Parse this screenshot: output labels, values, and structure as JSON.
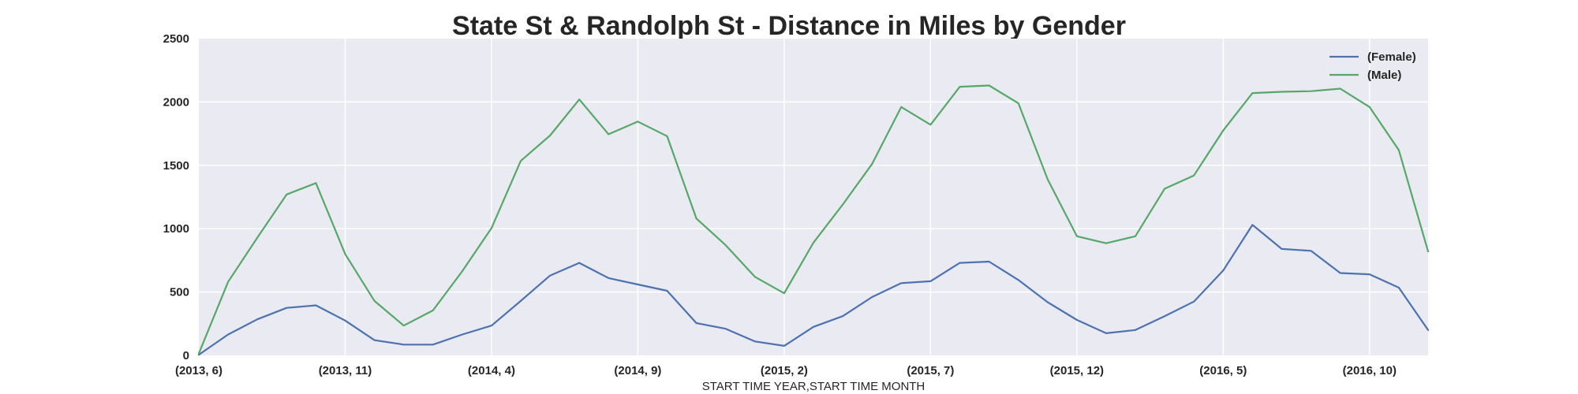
{
  "chart_data": {
    "type": "line",
    "title": "State St & Randolph St - Distance in Miles by Gender",
    "xlabel": "START TIME YEAR,START TIME MONTH",
    "ylabel": "",
    "ylim": [
      0,
      2500
    ],
    "yticks": [
      0,
      500,
      1000,
      1500,
      2000,
      2500
    ],
    "grid": true,
    "legend_position": "top-right",
    "x": [
      "(2013, 6)",
      "(2013, 7)",
      "(2013, 8)",
      "(2013, 9)",
      "(2013, 10)",
      "(2013, 11)",
      "(2013, 12)",
      "(2014, 1)",
      "(2014, 2)",
      "(2014, 3)",
      "(2014, 4)",
      "(2014, 5)",
      "(2014, 6)",
      "(2014, 7)",
      "(2014, 8)",
      "(2014, 9)",
      "(2014, 10)",
      "(2014, 11)",
      "(2014, 12)",
      "(2015, 1)",
      "(2015, 2)",
      "(2015, 3)",
      "(2015, 4)",
      "(2015, 5)",
      "(2015, 6)",
      "(2015, 7)",
      "(2015, 8)",
      "(2015, 9)",
      "(2015, 10)",
      "(2015, 11)",
      "(2015, 12)",
      "(2016, 1)",
      "(2016, 2)",
      "(2016, 3)",
      "(2016, 4)",
      "(2016, 5)",
      "(2016, 6)",
      "(2016, 7)",
      "(2016, 8)",
      "(2016, 9)",
      "(2016, 10)",
      "(2016, 11)",
      "(2016, 12)"
    ],
    "xtick_labels": [
      "(2013, 6)",
      "(2013, 11)",
      "(2014, 4)",
      "(2014, 9)",
      "(2015, 2)",
      "(2015, 7)",
      "(2015, 12)",
      "(2016, 5)",
      "(2016, 10)"
    ],
    "series": [
      {
        "name": "(Female)",
        "color": "#4c72b0",
        "values": [
          5,
          165,
          285,
          375,
          395,
          275,
          120,
          85,
          85,
          165,
          235,
          430,
          630,
          730,
          610,
          560,
          510,
          255,
          210,
          110,
          75,
          225,
          310,
          460,
          570,
          585,
          730,
          740,
          595,
          420,
          280,
          175,
          200,
          310,
          425,
          670,
          1030,
          840,
          825,
          650,
          640,
          535,
          200
        ]
      },
      {
        "name": "(Male)",
        "color": "#55a868",
        "values": [
          15,
          580,
          930,
          1270,
          1360,
          800,
          430,
          235,
          355,
          665,
          1005,
          1535,
          1735,
          2020,
          1745,
          1845,
          1730,
          1080,
          870,
          620,
          490,
          890,
          1190,
          1510,
          1960,
          1820,
          2120,
          2130,
          1990,
          1390,
          940,
          885,
          940,
          1315,
          1420,
          1775,
          2070,
          2080,
          2085,
          2105,
          1960,
          1620,
          820
        ]
      }
    ]
  }
}
